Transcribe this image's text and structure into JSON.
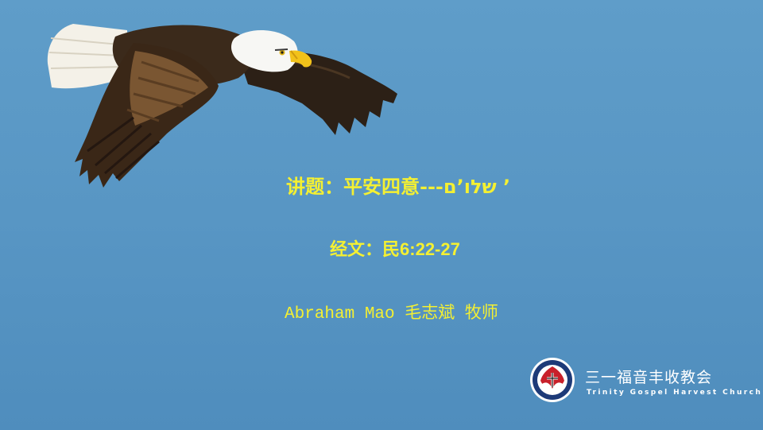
{
  "slide": {
    "title_cn": "讲题：平安四意---",
    "title_he": "’ שלו’ם",
    "scripture_label": "经文：民",
    "scripture_ref": "6:22-27",
    "speaker": "Abraham Mao 毛志斌 牧师"
  },
  "church": {
    "name_cn": "三一福音丰收教会",
    "name_en": "Trinity Gospel Harvest Church"
  },
  "colors": {
    "background": "#5896c4",
    "text_accent": "#f4f032",
    "logo_navy": "#1d3a78",
    "logo_red": "#c8202a"
  },
  "icons": {
    "eagle": "flying-eagle-image",
    "logo": "church-logo-icon"
  }
}
